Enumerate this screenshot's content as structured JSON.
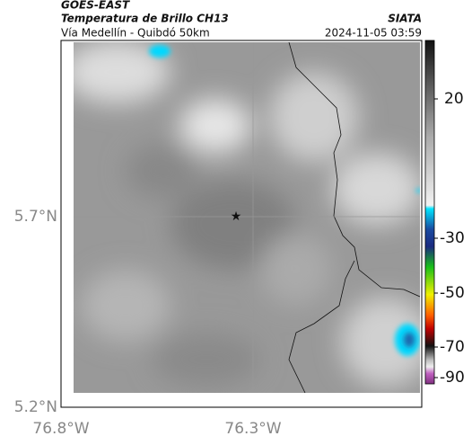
{
  "header": {
    "source": "GOES-EAST",
    "title": "Temperatura de Brillo CH13",
    "subtitle": "Vía Medellín - Quibdó 50km",
    "org": "SIATA",
    "datetime": "2024-11-05 03:59"
  },
  "map": {
    "lat_labels": [
      "5.7°N",
      "5.2°N"
    ],
    "lon_labels": [
      "76.8°W",
      "76.3°W"
    ]
  },
  "colorbar": {
    "ticks": [
      "20",
      "-30",
      "-50",
      "-70",
      "-90"
    ]
  }
}
